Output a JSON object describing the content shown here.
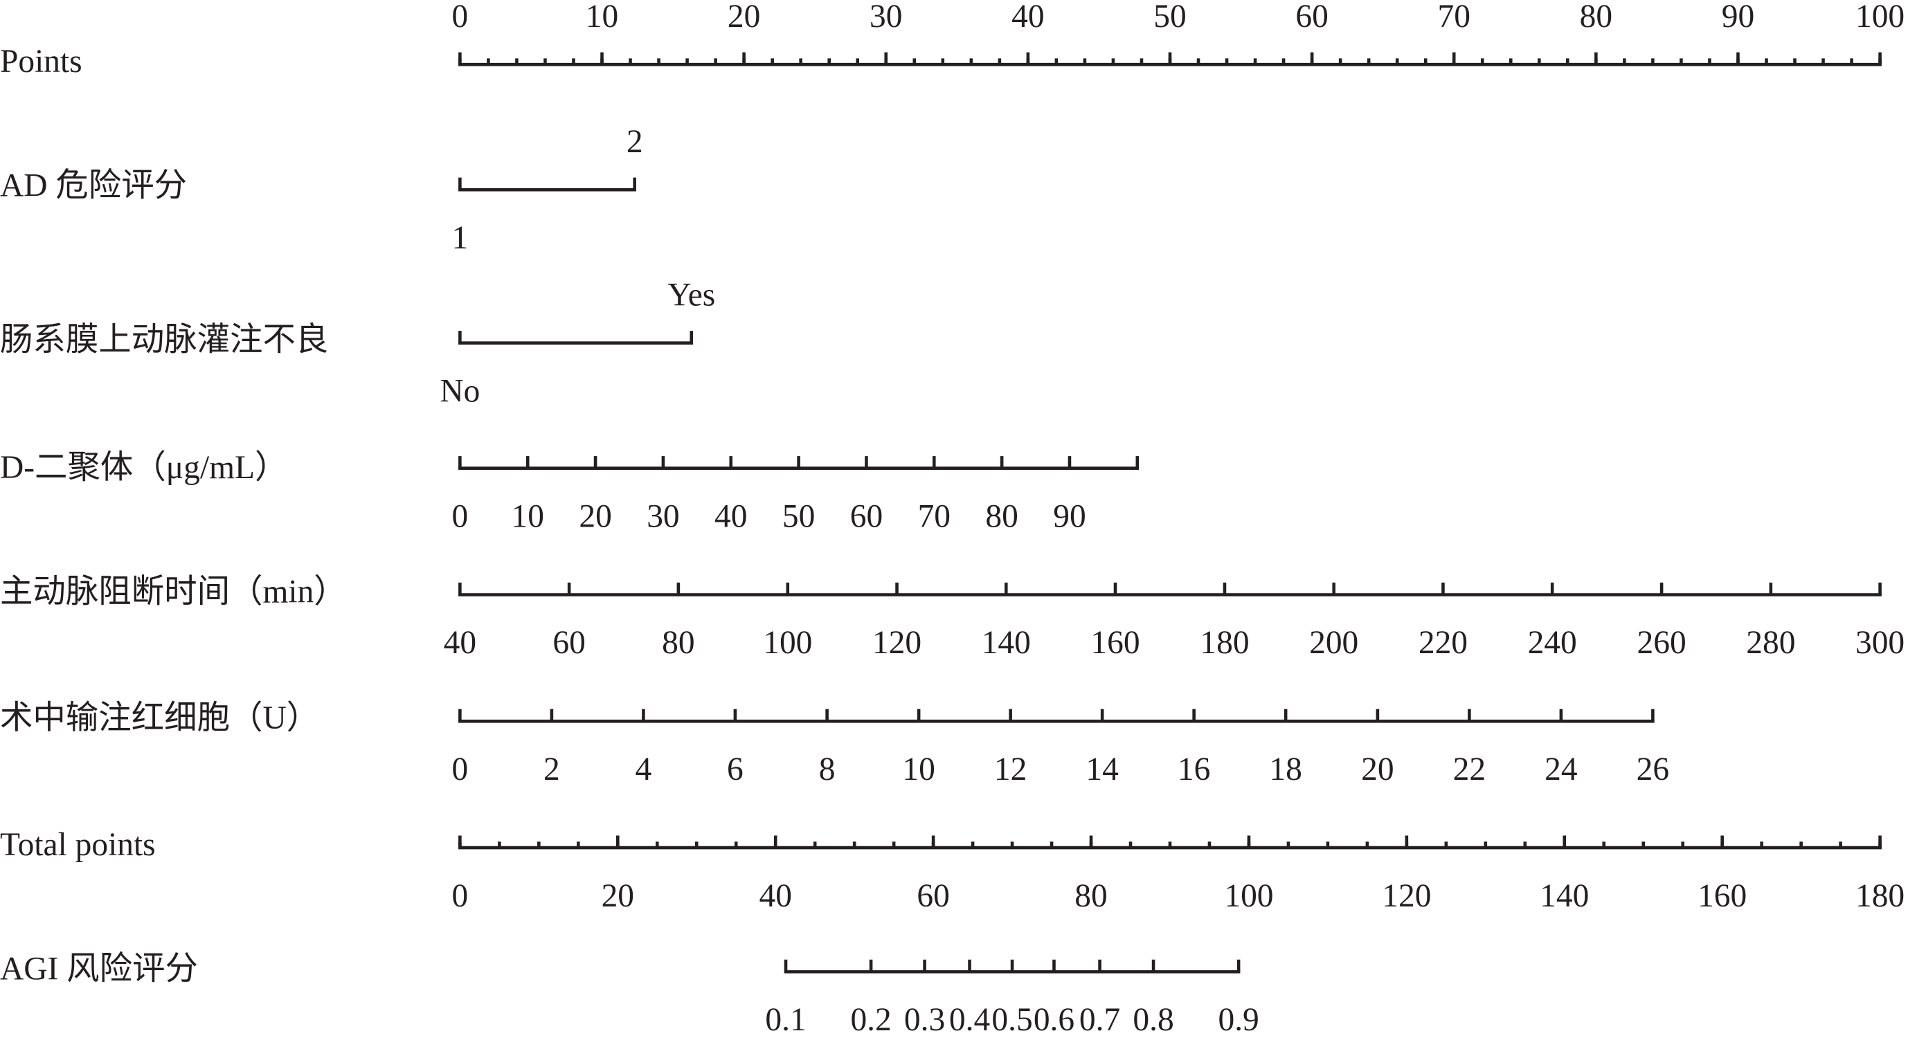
{
  "chart_data": {
    "type": "nomogram",
    "points_lim": [
      0,
      100
    ],
    "total_points_lim": [
      0,
      180
    ],
    "rows": [
      {
        "label": "Points",
        "scale": "points",
        "ticks": [
          0,
          10,
          20,
          30,
          40,
          50,
          60,
          70,
          80,
          90,
          100
        ],
        "tick_points": [
          0,
          10,
          20,
          30,
          40,
          50,
          60,
          70,
          80,
          90,
          100
        ],
        "axis_points": [
          0,
          100
        ],
        "minor_step": 2,
        "tick_label_side": "above"
      },
      {
        "label": "AD 危险评分",
        "scale": "points",
        "ticks": [
          1,
          2
        ],
        "tick_points": [
          0,
          12.3
        ],
        "axis_points": [
          0,
          12.3
        ],
        "tick_label_side": [
          "below",
          "above"
        ]
      },
      {
        "label": "肠系膜上动脉灌注不良",
        "scale": "points",
        "ticks": [
          "No",
          "Yes"
        ],
        "tick_points": [
          0,
          16.3
        ],
        "axis_points": [
          0,
          16.3
        ],
        "tick_label_side": [
          "below",
          "above"
        ]
      },
      {
        "label": "D-二聚体（μg/mL）",
        "scale": "points",
        "ticks": [
          0,
          10,
          20,
          30,
          40,
          50,
          60,
          70,
          80,
          90
        ],
        "tick_points": [
          0,
          4.77,
          9.54,
          14.31,
          19.08,
          23.85,
          28.62,
          33.39,
          38.16,
          42.93
        ],
        "axis_points": [
          0,
          47.7
        ],
        "tick_label_side": "below"
      },
      {
        "label": "主动脉阻断时间（min）",
        "scale": "points",
        "ticks": [
          40,
          60,
          80,
          100,
          120,
          140,
          160,
          180,
          200,
          220,
          240,
          260,
          280,
          300
        ],
        "tick_points": [
          0,
          7.69,
          15.38,
          23.08,
          30.77,
          38.46,
          46.15,
          53.85,
          61.54,
          69.23,
          76.92,
          84.62,
          92.31,
          100
        ],
        "axis_points": [
          0,
          100
        ],
        "tick_label_side": "below"
      },
      {
        "label": "术中输注红细胞（U）",
        "scale": "points",
        "ticks": [
          0,
          2,
          4,
          6,
          8,
          10,
          12,
          14,
          16,
          18,
          20,
          22,
          24,
          26
        ],
        "tick_points": [
          0,
          6.46,
          12.92,
          19.38,
          25.85,
          32.31,
          38.77,
          45.23,
          51.69,
          58.15,
          64.62,
          71.08,
          77.54,
          84.0
        ],
        "axis_points": [
          0,
          84.0
        ],
        "tick_label_side": "below"
      },
      {
        "label": "Total points",
        "scale": "total",
        "ticks": [
          0,
          20,
          40,
          60,
          80,
          100,
          120,
          140,
          160,
          180
        ],
        "tick_points": [
          0,
          20,
          40,
          60,
          80,
          100,
          120,
          140,
          160,
          180
        ],
        "axis_points": [
          0,
          180
        ],
        "minor_step": 5,
        "tick_label_side": "below"
      },
      {
        "label": "AGI 风险评分",
        "scale": "total",
        "ticks": [
          0.1,
          0.2,
          0.3,
          0.4,
          0.5,
          0.6,
          0.7,
          0.8,
          0.9
        ],
        "tick_points": [
          41.3,
          52.1,
          58.9,
          64.6,
          70.0,
          75.3,
          81.1,
          87.9,
          98.7
        ],
        "axis_points": [
          41.3,
          98.7
        ],
        "tick_label_side": "below"
      }
    ]
  }
}
